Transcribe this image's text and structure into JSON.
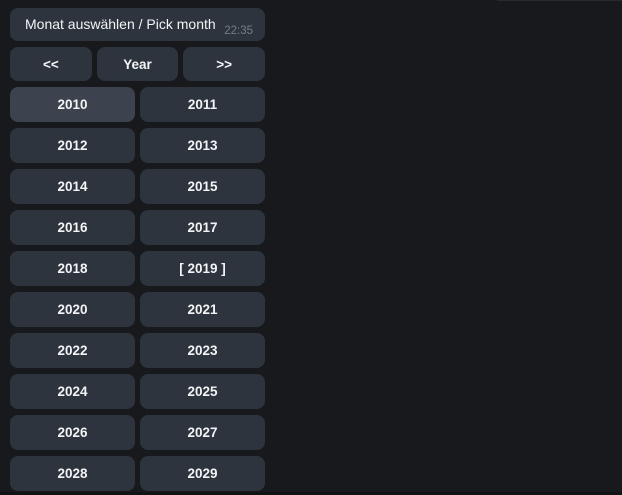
{
  "chat": {
    "message": {
      "text": "Monat auswählen / Pick month",
      "time": "22:35"
    }
  },
  "keyboard": {
    "nav": {
      "prev": "<<",
      "middle": "Year",
      "next": ">>"
    },
    "years": [
      "2010",
      "2011",
      "2012",
      "2013",
      "2014",
      "2015",
      "2016",
      "2017",
      "2018",
      "[ 2019 ]",
      "2020",
      "2021",
      "2022",
      "2023",
      "2024",
      "2025",
      "2026",
      "2027",
      "2028",
      "2029"
    ],
    "hovered_year": "2010",
    "bracketed_current_year": "[ 2019 ]"
  },
  "colors": {
    "background": "#17191d",
    "bubble": "#2e343d",
    "button": "#2e343d",
    "button_hover": "#3d434e",
    "text": "#f2f4f6",
    "timestamp": "#747d87",
    "bottom_strip": "#111317",
    "edge_line": "#26292e"
  }
}
